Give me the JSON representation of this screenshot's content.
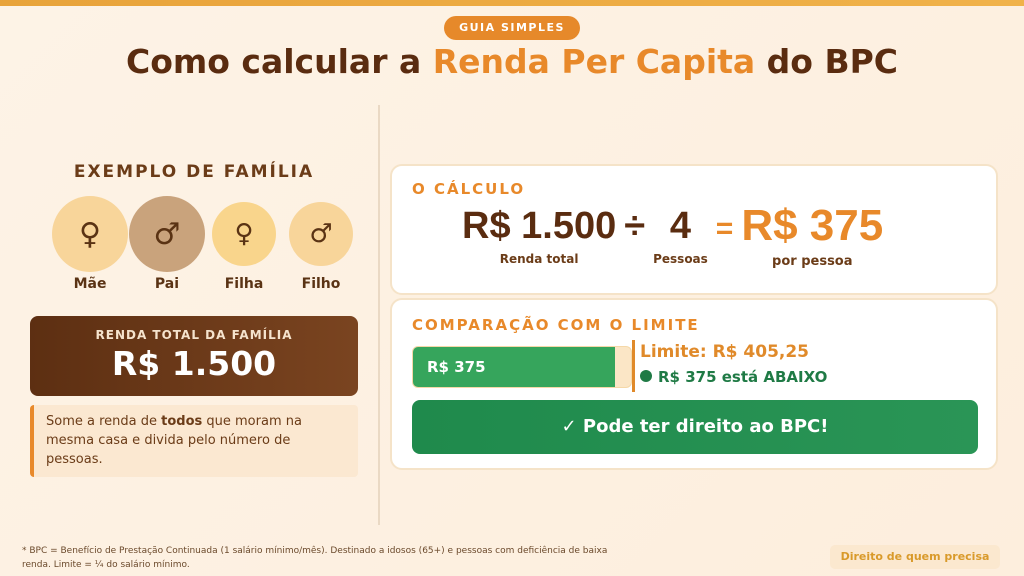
{
  "badge": "GUIA SIMPLES",
  "title": {
    "pre": "Como calcular a ",
    "highlight": "Renda Per Capita",
    "post": " do BPC"
  },
  "family": {
    "heading": "EXEMPLO DE FAMÍLIA",
    "members": [
      {
        "label": "Mãe",
        "icon": "♀",
        "icon_name": "female-icon"
      },
      {
        "label": "Pai",
        "icon": "♂",
        "icon_name": "male-icon"
      },
      {
        "label": "Filha",
        "icon": "♀",
        "icon_name": "female-icon"
      },
      {
        "label": "Filho",
        "icon": "♂",
        "icon_name": "male-icon"
      }
    ],
    "total_label": "RENDA TOTAL DA FAMÍLIA",
    "total_value": "R$ 1.500",
    "note": {
      "pre": "Some a renda de ",
      "bold": "todos",
      "post": " que moram na mesma casa e divida pelo número de pessoas."
    }
  },
  "calc": {
    "heading": "O CÁLCULO",
    "income": "R$ 1.500",
    "income_label": "Renda total",
    "div": "÷",
    "people": "4",
    "people_label": "Pessoas",
    "eq": "=",
    "result": "R$ 375",
    "result_label": "por pessoa"
  },
  "compare": {
    "heading": "COMPARAÇÃO COM O LIMITE",
    "bar_value": "R$ 375",
    "fill_fraction": 0.925,
    "limit": "Limite: R$ 405,25",
    "status": "R$ 375 está ABAIXO",
    "result_button": "✓ Pode ter direito ao BPC!"
  },
  "footer": {
    "note": "* BPC = Benefício de Prestação Continuada (1 salário mínimo/mês). Destinado a idosos (65+) e pessoas com deficiência de baixa renda. Limite = ¼ do salário mínimo.",
    "tag": "Direito de quem precisa"
  },
  "colors": {
    "accent": "#e8892a",
    "brown": "#5a2c10",
    "green": "#1f8a4c"
  }
}
